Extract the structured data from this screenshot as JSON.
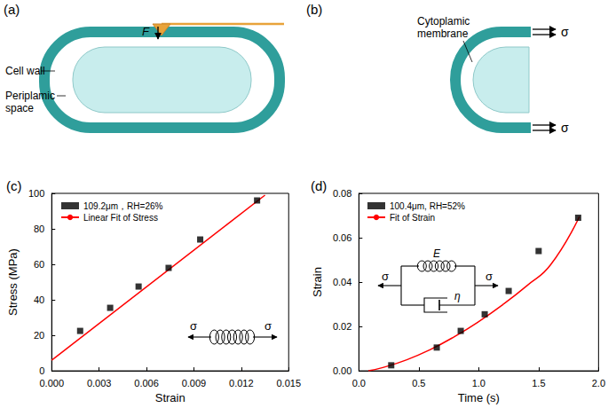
{
  "panels": {
    "a": {
      "title": "(a)",
      "force": "F",
      "labels": {
        "cell_wall": [
          "Cell wall"
        ],
        "periplasmic_space": [
          "Periplamic",
          "space"
        ]
      }
    },
    "b": {
      "title": "(b)",
      "stress": "σ",
      "labels": {
        "cytoplasmic_membrane": [
          "Cytoplamic",
          "membrane"
        ]
      }
    }
  },
  "chart_data": [
    {
      "title": "(c)",
      "type": "scatter",
      "xlabel": "Strain",
      "ylabel": "Stress (MPa)",
      "xlim": [
        0,
        0.015
      ],
      "xticks": [
        {
          "value": 0,
          "label": "0.000"
        },
        {
          "value": 0.003,
          "label": "0.003"
        },
        {
          "value": 0.006,
          "label": "0.006"
        },
        {
          "value": 0.009,
          "label": "0.009"
        },
        {
          "value": 0.012,
          "label": "0.012"
        },
        {
          "value": 0.015,
          "label": "0.015"
        }
      ],
      "ylim": [
        0,
        100
      ],
      "yticks": [
        0,
        20,
        40,
        60,
        80,
        100
      ],
      "grid": false,
      "legend": "upper left",
      "series": [
        {
          "name": "109.2μm，RH=26%",
          "type": "scatter",
          "marker": "square",
          "color": "#000000",
          "x": [
            0.0018,
            0.0037,
            0.0055,
            0.0074,
            0.0094,
            0.013
          ],
          "values": [
            22.5,
            35.5,
            47.5,
            58,
            74,
            96
          ]
        },
        {
          "name": "Linear Fit of Stress",
          "type": "line",
          "line_style": "solid",
          "color": "#ff0000",
          "x": [
            0,
            0.0135
          ],
          "values": [
            6,
            99
          ]
        }
      ],
      "annotations": {
        "stress": "σ"
      }
    },
    {
      "title": "(d)",
      "type": "scatter",
      "xlabel": "Time (s)",
      "ylabel": "Strain",
      "xlim": [
        0,
        2
      ],
      "xticks": [
        {
          "value": 0,
          "label": "0.0"
        },
        {
          "value": 0.5,
          "label": "0.5"
        },
        {
          "value": 1,
          "label": "1.0"
        },
        {
          "value": 1.5,
          "label": "1.5"
        },
        {
          "value": 2,
          "label": "2.0"
        }
      ],
      "ylim": [
        0,
        0.08
      ],
      "yticks": [
        {
          "value": 0,
          "label": "0.00"
        },
        {
          "value": 0.02,
          "label": "0.02"
        },
        {
          "value": 0.04,
          "label": "0.04"
        },
        {
          "value": 0.06,
          "label": "0.06"
        },
        {
          "value": 0.08,
          "label": "0.08"
        }
      ],
      "grid": false,
      "legend": "upper left",
      "series": [
        {
          "name": "100.4μm, RH=52%",
          "type": "scatter",
          "marker": "square",
          "color": "#000000",
          "x": [
            0.27,
            0.65,
            0.85,
            1.05,
            1.25,
            1.5,
            1.83
          ],
          "values": [
            0.0025,
            0.0105,
            0.018,
            0.0255,
            0.036,
            0.054,
            0.069
          ]
        },
        {
          "name": "Fit of Strain",
          "type": "line",
          "line_style": "solid",
          "color": "#ff0000",
          "x": [
            0.08,
            0.2,
            0.4,
            0.6,
            0.8,
            1.0,
            1.2,
            1.4,
            1.6,
            1.84
          ],
          "values": [
            0,
            0.0015,
            0.005,
            0.0097,
            0.0155,
            0.0222,
            0.0298,
            0.0383,
            0.0478,
            0.0695
          ]
        }
      ],
      "annotations": {
        "stress": "σ",
        "spring": "E",
        "dashpot": "η"
      }
    }
  ]
}
